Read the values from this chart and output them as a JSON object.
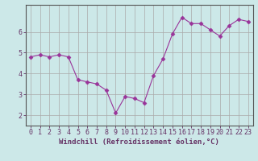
{
  "x": [
    0,
    1,
    2,
    3,
    4,
    5,
    6,
    7,
    8,
    9,
    10,
    11,
    12,
    13,
    14,
    15,
    16,
    17,
    18,
    19,
    20,
    21,
    22,
    23
  ],
  "y": [
    4.8,
    4.9,
    4.8,
    4.9,
    4.8,
    3.7,
    3.6,
    3.5,
    3.2,
    2.1,
    2.9,
    2.8,
    2.6,
    3.9,
    4.7,
    5.9,
    6.7,
    6.4,
    6.4,
    6.1,
    5.8,
    6.3,
    6.6,
    6.5
  ],
  "xlabel": "Windchill (Refroidissement éolien,°C)",
  "xlim_min": -0.5,
  "xlim_max": 23.5,
  "ylim_min": 1.5,
  "ylim_max": 7.3,
  "yticks": [
    2,
    3,
    4,
    5,
    6
  ],
  "xticks": [
    0,
    1,
    2,
    3,
    4,
    5,
    6,
    7,
    8,
    9,
    10,
    11,
    12,
    13,
    14,
    15,
    16,
    17,
    18,
    19,
    20,
    21,
    22,
    23
  ],
  "line_color": "#993399",
  "marker": "D",
  "marker_size": 2.5,
  "bg_color": "#cce8e8",
  "grid_color": "#aaaaaa",
  "axis_color": "#555555",
  "font_color": "#663366",
  "xlabel_fontsize": 6.5,
  "tick_fontsize": 6.0
}
